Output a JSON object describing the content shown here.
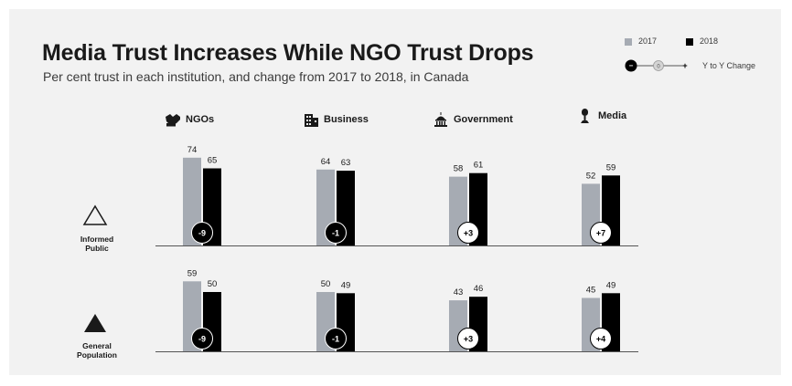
{
  "header": {
    "title": "Media Trust Increases While NGO Trust Drops",
    "subtitle": "Per cent trust in each institution, and change from 2017 to 2018, in Canada"
  },
  "legend": {
    "year_2017": "2017",
    "year_2018": "2018",
    "change_label": "Y to Y Change",
    "change_minus": "−",
    "change_zero": "0",
    "change_plus": "+"
  },
  "colors": {
    "bar_2017": "#a6abb3",
    "bar_2018": "#000000",
    "card_background": "#f2f2f2",
    "change_negative": "#000000",
    "change_positive": "#ffffff"
  },
  "categories": [
    {
      "label": "NGOs",
      "icon": "hands-icon"
    },
    {
      "label": "Business",
      "icon": "building-icon"
    },
    {
      "label": "Government",
      "icon": "capitol-icon"
    },
    {
      "label": "Media",
      "icon": "microphone-icon"
    }
  ],
  "rows": [
    {
      "label_line1": "Informed",
      "label_line2": "Public",
      "icon": "triangle-outline-icon"
    },
    {
      "label_line1": "General",
      "label_line2": "Population",
      "icon": "triangle-filled-icon"
    }
  ],
  "chart_data": {
    "type": "bar",
    "title": "Media Trust Increases While NGO Trust Drops",
    "subtitle": "Per cent trust in each institution, and change from 2017 to 2018, in Canada",
    "categories": [
      "NGOs",
      "Business",
      "Government",
      "Media"
    ],
    "groups": [
      "Informed Public",
      "General Population"
    ],
    "series": [
      {
        "name": "2017",
        "values": {
          "Informed Public": [
            74,
            64,
            58,
            52
          ],
          "General Population": [
            59,
            50,
            43,
            45
          ]
        }
      },
      {
        "name": "2018",
        "values": {
          "Informed Public": [
            65,
            63,
            61,
            59
          ],
          "General Population": [
            50,
            49,
            46,
            49
          ]
        }
      }
    ],
    "change": {
      "Informed Public": [
        "-9",
        "-1",
        "+3",
        "+7"
      ],
      "General Population": [
        "-9",
        "-1",
        "+3",
        "+4"
      ]
    },
    "legend_position": "top-right",
    "grid": false
  }
}
